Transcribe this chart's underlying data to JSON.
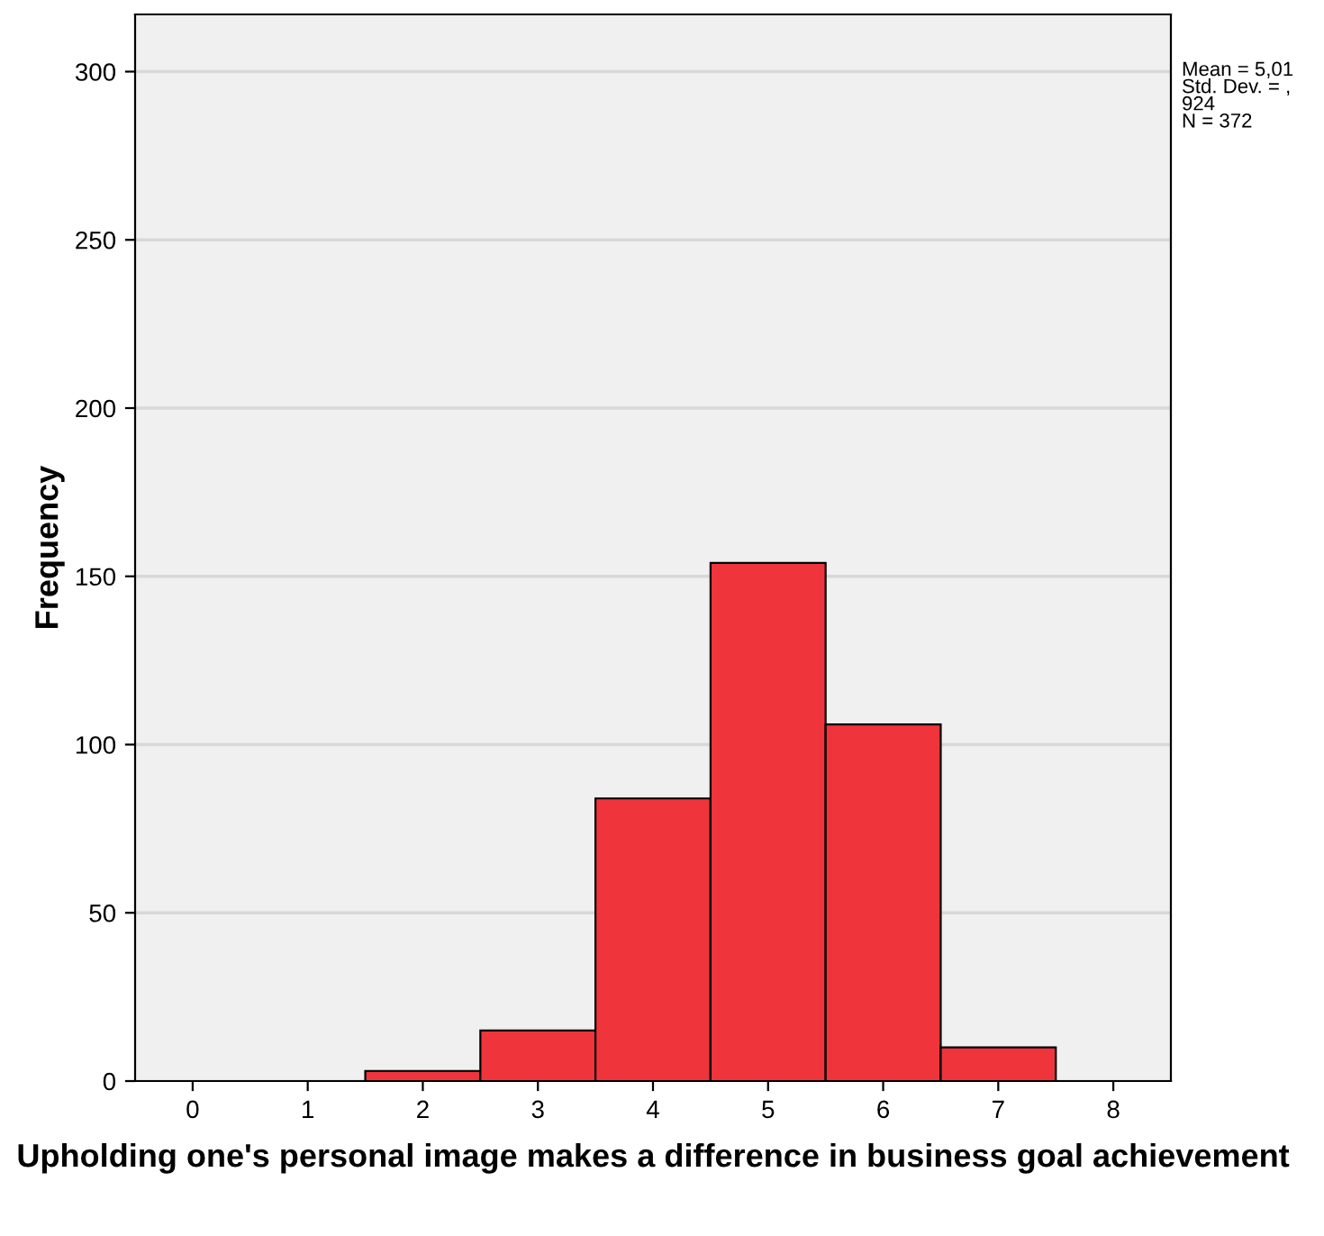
{
  "chart_data": {
    "type": "histogram",
    "xlabel": "Upholding one's personal image makes a difference in business goal achievement",
    "ylabel": "Frequency",
    "bins": [
      1.5,
      2.5,
      3.5,
      4.5,
      5.5,
      6.5,
      7.5
    ],
    "values": [
      3,
      15,
      84,
      154,
      106,
      10
    ],
    "color": "#f0343c",
    "xlim": [
      -0.5,
      8.5
    ],
    "xticks": [
      0,
      1,
      2,
      3,
      4,
      5,
      6,
      7,
      8
    ],
    "ylim": [
      0,
      317
    ],
    "yticks": [
      0,
      50,
      100,
      150,
      200,
      250,
      300
    ],
    "grid": "y",
    "annotations": [
      "Mean = 5,01\nStd. Dev. = ,\n924\nN = 372"
    ]
  }
}
